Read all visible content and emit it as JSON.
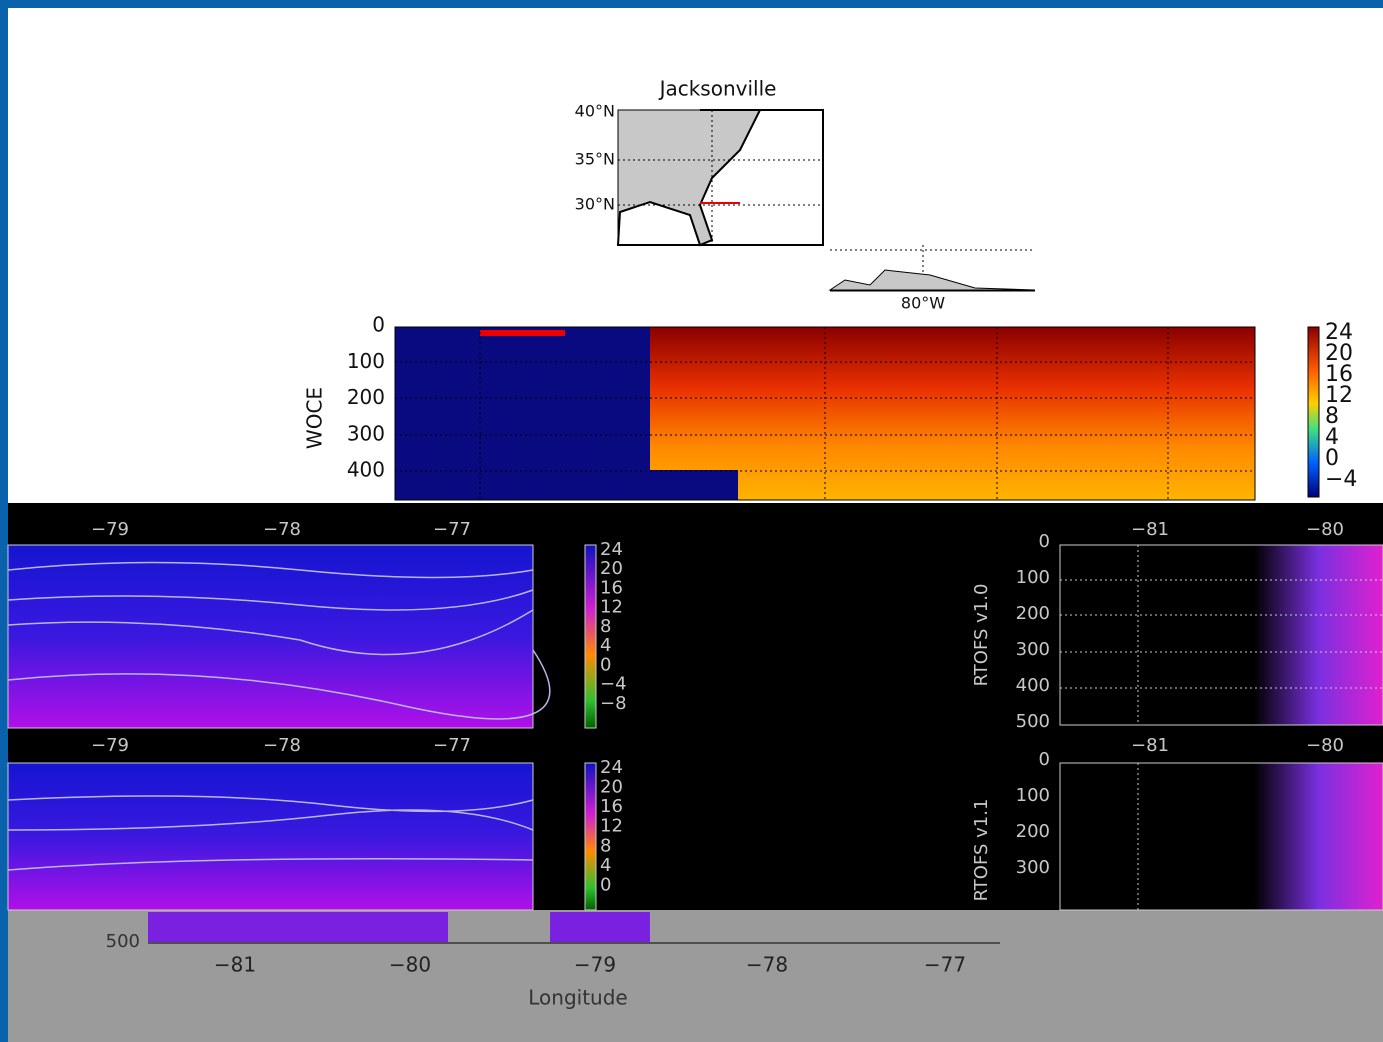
{
  "map": {
    "title": "Jacksonville",
    "lat_labels": [
      "40°N",
      "35°N",
      "30°N"
    ],
    "lon_label": "80°W"
  },
  "woce": {
    "ylabel": "WOCE",
    "yticks": [
      0,
      100,
      200,
      300,
      400
    ],
    "colorbar_ticks": [
      "24",
      "20",
      "16",
      "12",
      "8",
      "4",
      "0",
      "−4"
    ]
  },
  "rtofs_v10": {
    "ylabel": "RTOFS v1.0",
    "xticks_left": [
      "−79",
      "−78",
      "−77"
    ],
    "xticks_right": [
      "−81",
      "−80"
    ],
    "yticks": [
      0,
      100,
      200,
      300,
      400,
      500
    ],
    "colorbar_ticks": [
      "24",
      "20",
      "16",
      "12",
      "8",
      "4",
      "0",
      "−4",
      "−8"
    ]
  },
  "rtofs_v11": {
    "ylabel": "RTOFS v1.1",
    "xticks_left": [
      "−79",
      "−78",
      "−77"
    ],
    "xticks_right": [
      "−81",
      "−80"
    ],
    "yticks": [
      0,
      100,
      200,
      300
    ],
    "colorbar_ticks": [
      "24",
      "20",
      "16",
      "12",
      "8",
      "4",
      "0"
    ]
  },
  "bottom": {
    "ytick": "500",
    "xticks": [
      "−81",
      "−80",
      "−79",
      "−78",
      "−77"
    ],
    "xlabel": "Longitude"
  }
}
